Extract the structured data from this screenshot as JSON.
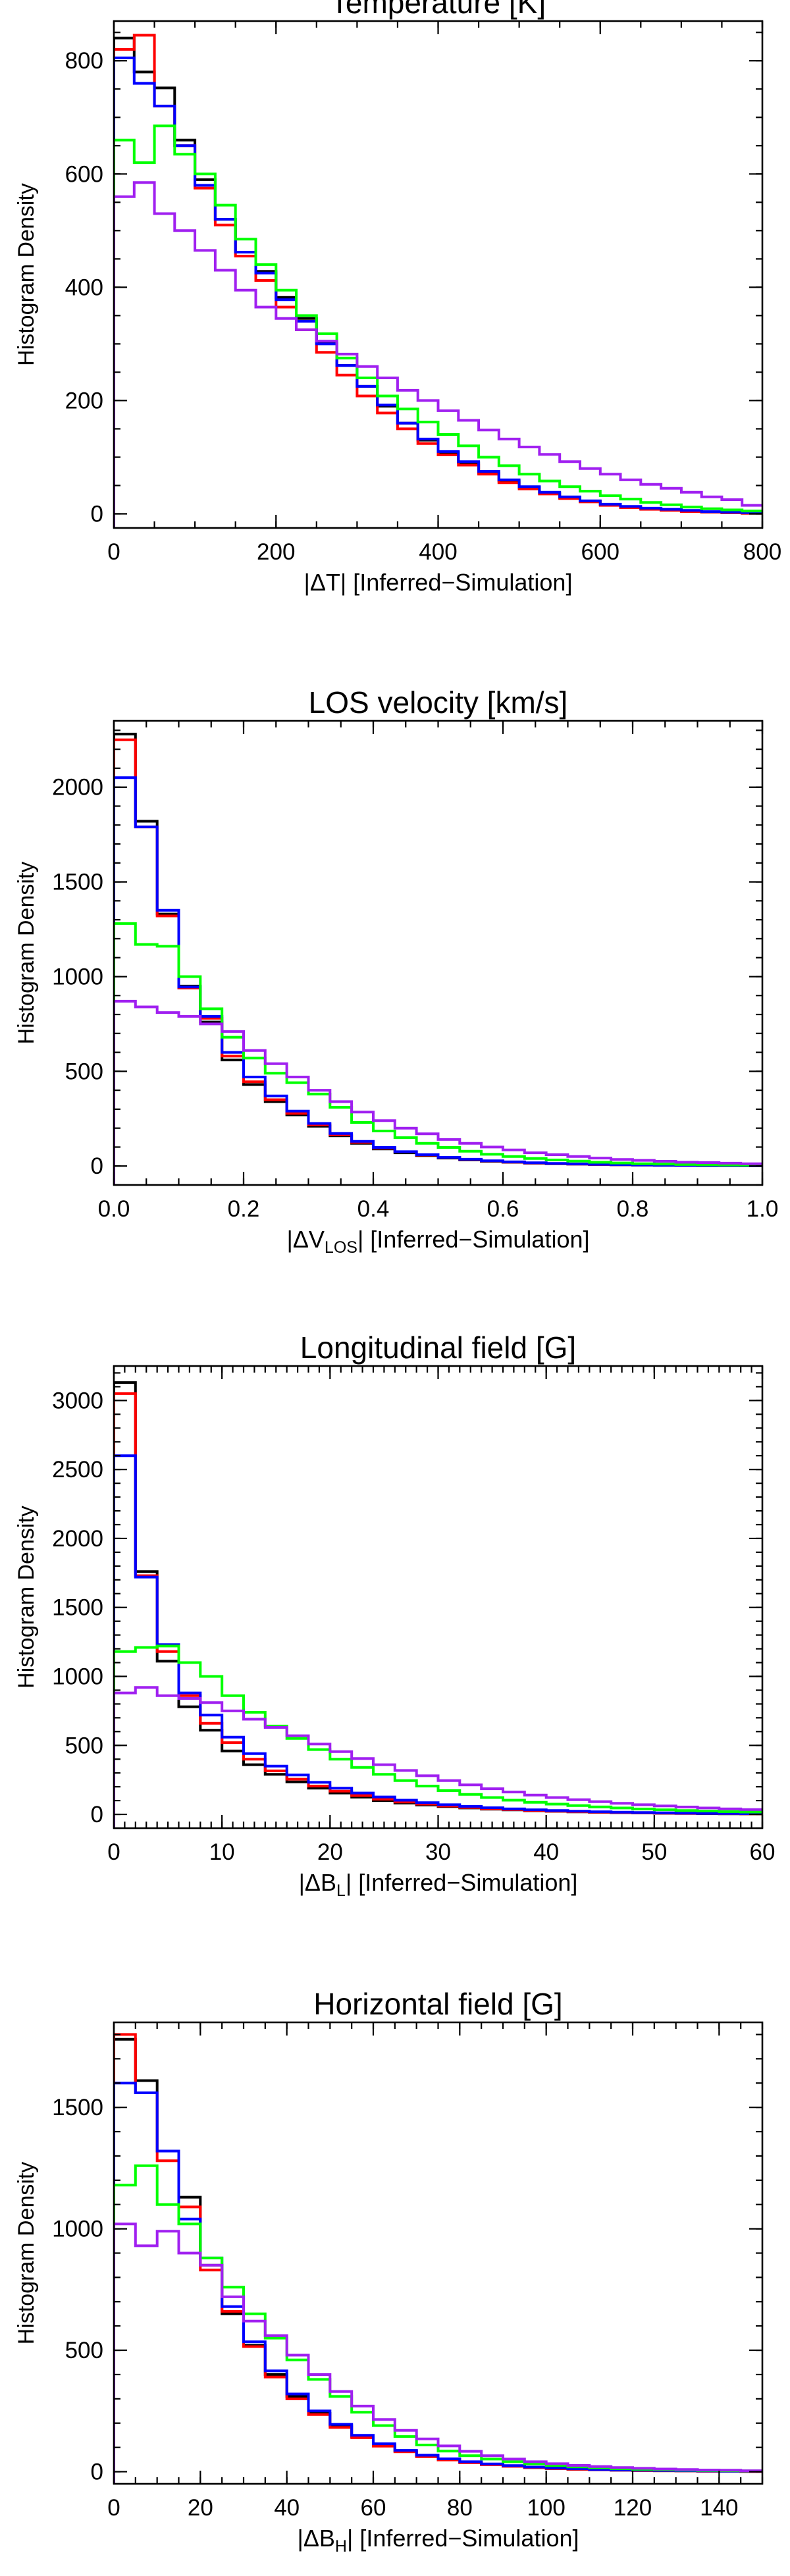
{
  "chart_data": [
    {
      "type": "histogram",
      "title": "Temperature [K]",
      "ylabel": "Histogram Density",
      "xlabel_prefix": "|ΔT|",
      "xlabel_sub": "",
      "xlabel_suffix": "|   [Inferred−Simulation]",
      "xlim": [
        0,
        800
      ],
      "ylim": [
        -25,
        870
      ],
      "x_ticks": [
        0,
        200,
        400,
        600,
        800
      ],
      "y_ticks": [
        0,
        200,
        400,
        600,
        800
      ],
      "x_minor_step": 50,
      "y_minor_step": 50,
      "bin_width": 25,
      "series": [
        {
          "name": "black",
          "color": "#000000",
          "values": [
            840,
            780,
            752,
            660,
            590,
            520,
            462,
            428,
            382,
            345,
            302,
            262,
            225,
            190,
            160,
            130,
            108,
            90,
            72,
            58,
            46,
            36,
            28,
            22,
            16,
            12,
            9,
            7,
            5,
            3,
            2,
            1
          ]
        },
        {
          "name": "red",
          "color": "#ff0000",
          "values": [
            820,
            845,
            720,
            650,
            575,
            510,
            455,
            412,
            365,
            325,
            285,
            245,
            208,
            178,
            150,
            124,
            104,
            86,
            70,
            55,
            44,
            35,
            27,
            21,
            15,
            11,
            8,
            6,
            4,
            3,
            2,
            1
          ]
        },
        {
          "name": "blue",
          "color": "#0000ff",
          "values": [
            805,
            760,
            720,
            650,
            580,
            520,
            462,
            425,
            378,
            340,
            300,
            262,
            225,
            192,
            160,
            132,
            110,
            92,
            75,
            60,
            48,
            38,
            30,
            23,
            17,
            13,
            10,
            8,
            6,
            4,
            3,
            2
          ]
        },
        {
          "name": "green",
          "color": "#00ff00",
          "values": [
            660,
            620,
            685,
            635,
            600,
            545,
            485,
            440,
            395,
            350,
            318,
            275,
            240,
            208,
            185,
            162,
            140,
            120,
            100,
            85,
            70,
            58,
            48,
            40,
            32,
            26,
            20,
            16,
            12,
            9,
            7,
            5
          ]
        },
        {
          "name": "purple",
          "color": "#a020f0",
          "values": [
            560,
            585,
            530,
            500,
            465,
            430,
            395,
            365,
            345,
            325,
            305,
            282,
            260,
            240,
            218,
            200,
            182,
            165,
            148,
            132,
            118,
            105,
            92,
            80,
            70,
            60,
            52,
            45,
            38,
            30,
            25,
            15
          ]
        }
      ]
    },
    {
      "type": "histogram",
      "title": "LOS velocity [km/s]",
      "ylabel": "Histogram Density",
      "xlabel_prefix": "|ΔV",
      "xlabel_sub": "LOS",
      "xlabel_suffix": "|   [Inferred−Simulation]",
      "xlim": [
        0,
        1.0
      ],
      "ylim": [
        -100,
        2350
      ],
      "x_ticks": [
        0.0,
        0.2,
        0.4,
        0.6,
        0.8,
        1.0
      ],
      "x_tick_labels": [
        "0.0",
        "0.2",
        "0.4",
        "0.6",
        "0.8",
        "1.0"
      ],
      "y_ticks": [
        0,
        500,
        1000,
        1500,
        2000
      ],
      "x_minor_step": 0.05,
      "y_minor_step": 100,
      "bin_width": 0.03333,
      "series": [
        {
          "name": "black",
          "color": "#000000",
          "values": [
            2280,
            1820,
            1330,
            950,
            760,
            560,
            430,
            340,
            270,
            210,
            160,
            120,
            90,
            70,
            55,
            42,
            32,
            25,
            20,
            15,
            12,
            10,
            8,
            6,
            5,
            4,
            3,
            2,
            2,
            1
          ]
        },
        {
          "name": "red",
          "color": "#ff0000",
          "values": [
            2250,
            1790,
            1320,
            940,
            780,
            580,
            445,
            350,
            278,
            218,
            165,
            125,
            95,
            75,
            58,
            45,
            35,
            27,
            21,
            16,
            13,
            10,
            8,
            6,
            5,
            4,
            3,
            2,
            2,
            1
          ]
        },
        {
          "name": "blue",
          "color": "#0000ff",
          "values": [
            2050,
            1790,
            1350,
            945,
            790,
            600,
            470,
            370,
            290,
            225,
            172,
            130,
            98,
            76,
            60,
            46,
            36,
            28,
            22,
            17,
            14,
            11,
            9,
            7,
            5,
            4,
            3,
            2,
            2,
            1
          ]
        },
        {
          "name": "green",
          "color": "#00ff00",
          "values": [
            1280,
            1170,
            1160,
            1000,
            830,
            680,
            570,
            490,
            440,
            380,
            310,
            230,
            185,
            150,
            120,
            98,
            78,
            62,
            50,
            40,
            32,
            26,
            20,
            16,
            12,
            10,
            8,
            6,
            5,
            4
          ]
        },
        {
          "name": "purple",
          "color": "#a020f0",
          "values": [
            870,
            840,
            810,
            790,
            750,
            710,
            610,
            540,
            470,
            400,
            340,
            285,
            240,
            200,
            170,
            140,
            120,
            100,
            85,
            70,
            60,
            50,
            42,
            35,
            30,
            25,
            20,
            18,
            15,
            12
          ]
        }
      ]
    },
    {
      "type": "histogram",
      "title": "Longitudinal field [G]",
      "ylabel": "Histogram Density",
      "xlabel_prefix": "|ΔB",
      "xlabel_sub": "L",
      "xlabel_suffix": "|   [Inferred−Simulation]",
      "xlim": [
        0,
        60
      ],
      "ylim": [
        -100,
        3250
      ],
      "x_ticks": [
        0,
        10,
        20,
        30,
        40,
        50,
        60
      ],
      "y_ticks": [
        0,
        500,
        1000,
        1500,
        2000,
        2500,
        3000
      ],
      "x_minor_step": 1,
      "y_minor_step": 100,
      "bin_width": 2,
      "series": [
        {
          "name": "black",
          "color": "#000000",
          "values": [
            3130,
            1760,
            1110,
            780,
            610,
            460,
            360,
            290,
            235,
            190,
            155,
            125,
            100,
            82,
            68,
            56,
            46,
            38,
            32,
            26,
            22,
            18,
            15,
            12,
            10,
            8,
            7,
            5,
            4,
            3
          ]
        },
        {
          "name": "red",
          "color": "#ff0000",
          "values": [
            3050,
            1730,
            1180,
            860,
            660,
            520,
            400,
            315,
            255,
            205,
            168,
            136,
            110,
            90,
            74,
            60,
            50,
            41,
            34,
            28,
            23,
            19,
            16,
            13,
            11,
            9,
            7,
            6,
            5,
            4
          ]
        },
        {
          "name": "blue",
          "color": "#0000ff",
          "values": [
            2600,
            1720,
            1230,
            880,
            720,
            560,
            440,
            350,
            285,
            232,
            190,
            155,
            126,
            103,
            85,
            70,
            58,
            48,
            40,
            33,
            28,
            23,
            19,
            16,
            13,
            11,
            9,
            7,
            6,
            5
          ]
        },
        {
          "name": "green",
          "color": "#00ff00",
          "values": [
            1180,
            1210,
            1220,
            1100,
            1000,
            860,
            740,
            640,
            550,
            470,
            400,
            340,
            290,
            245,
            205,
            172,
            145,
            122,
            103,
            87,
            74,
            63,
            54,
            46,
            39,
            33,
            28,
            24,
            20,
            17
          ]
        },
        {
          "name": "purple",
          "color": "#a020f0",
          "values": [
            880,
            920,
            860,
            840,
            810,
            750,
            690,
            630,
            570,
            510,
            455,
            405,
            360,
            318,
            280,
            245,
            214,
            186,
            162,
            140,
            122,
            106,
            92,
            80,
            70,
            61,
            53,
            46,
            40,
            35
          ]
        }
      ]
    },
    {
      "type": "histogram",
      "title": "Horizontal field [G]",
      "ylabel": "Histogram Density",
      "xlabel_prefix": "|ΔB",
      "xlabel_sub": "H",
      "xlabel_suffix": "|   [Inferred−Simulation]",
      "xlim": [
        0,
        150
      ],
      "ylim": [
        -50,
        1850
      ],
      "x_ticks": [
        0,
        20,
        40,
        60,
        80,
        100,
        120,
        140
      ],
      "y_ticks": [
        0,
        500,
        1000,
        1500
      ],
      "x_minor_step": 5,
      "y_minor_step": 100,
      "bin_width": 5,
      "series": [
        {
          "name": "black",
          "color": "#000000",
          "values": [
            1780,
            1610,
            1320,
            1130,
            850,
            650,
            520,
            400,
            310,
            240,
            190,
            145,
            110,
            85,
            65,
            50,
            38,
            30,
            23,
            17,
            13,
            10,
            8,
            6,
            5,
            4,
            3,
            2,
            2,
            1
          ]
        },
        {
          "name": "red",
          "color": "#ff0000",
          "values": [
            1800,
            1560,
            1280,
            1090,
            830,
            660,
            515,
            390,
            300,
            235,
            182,
            140,
            105,
            82,
            62,
            48,
            37,
            29,
            22,
            17,
            13,
            10,
            8,
            6,
            5,
            4,
            3,
            2,
            2,
            1
          ]
        },
        {
          "name": "blue",
          "color": "#0000ff",
          "values": [
            1600,
            1560,
            1320,
            1040,
            880,
            680,
            535,
            415,
            320,
            250,
            195,
            150,
            115,
            88,
            68,
            53,
            41,
            32,
            25,
            19,
            15,
            12,
            9,
            7,
            6,
            5,
            4,
            3,
            2,
            2
          ]
        },
        {
          "name": "green",
          "color": "#00ff00",
          "values": [
            1180,
            1260,
            1100,
            1020,
            880,
            760,
            650,
            550,
            460,
            380,
            310,
            245,
            190,
            145,
            110,
            85,
            66,
            52,
            41,
            32,
            25,
            20,
            16,
            12,
            10,
            8,
            6,
            5,
            4,
            3
          ]
        },
        {
          "name": "purple",
          "color": "#a020f0",
          "values": [
            1020,
            930,
            990,
            900,
            850,
            720,
            620,
            560,
            480,
            400,
            330,
            270,
            215,
            170,
            135,
            106,
            84,
            66,
            52,
            41,
            33,
            26,
            21,
            17,
            14,
            11,
            9,
            7,
            6,
            4
          ]
        }
      ]
    }
  ]
}
